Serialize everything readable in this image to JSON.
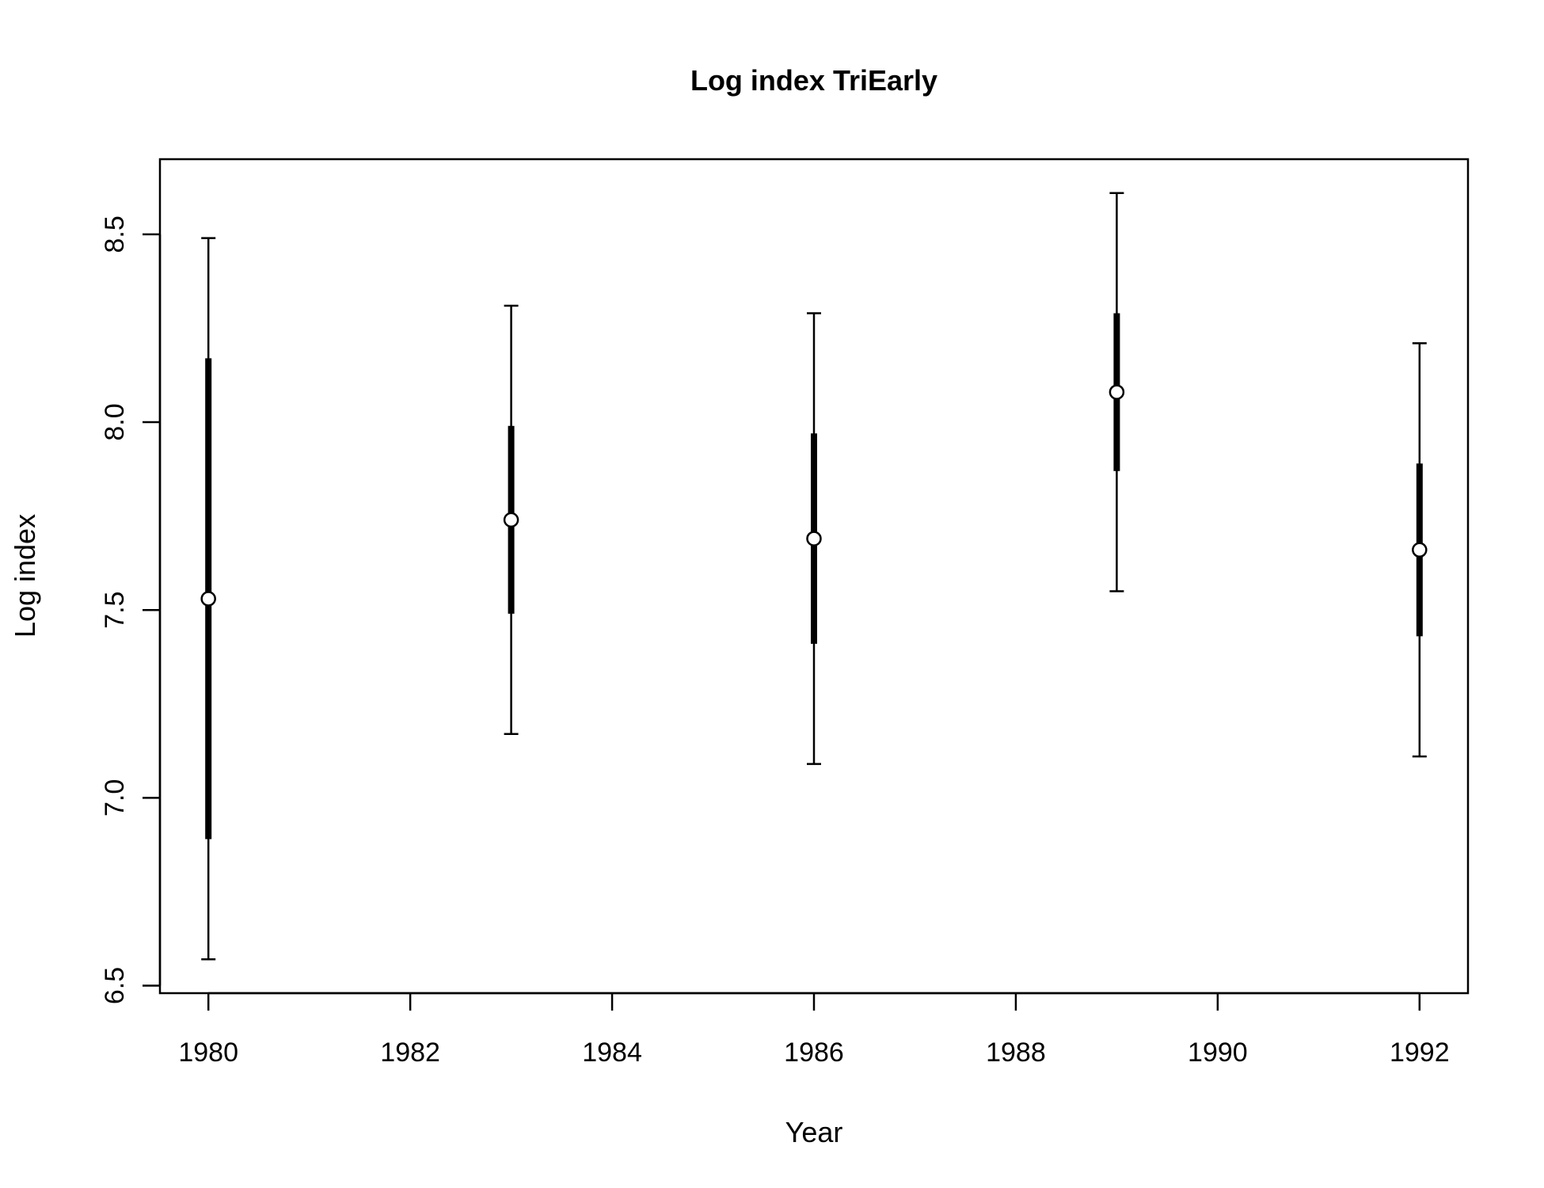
{
  "chart_data": {
    "type": "scatter",
    "title": "Log index TriEarly",
    "xlabel": "Year",
    "ylabel": "Log index",
    "xlim": [
      1979.52,
      1992.48
    ],
    "ylim": [
      6.48,
      8.7
    ],
    "x_ticks": [
      "1980",
      "1982",
      "1984",
      "1986",
      "1988",
      "1990",
      "1992"
    ],
    "y_ticks": [
      "6.5",
      "7.0",
      "7.5",
      "8.0",
      "8.5"
    ],
    "grid": false,
    "legend": "none",
    "points": [
      {
        "x": 1980,
        "y": 7.53,
        "inner_low": 6.89,
        "inner_high": 8.17,
        "outer_low": 6.57,
        "outer_high": 8.49
      },
      {
        "x": 1983,
        "y": 7.74,
        "inner_low": 7.49,
        "inner_high": 7.99,
        "outer_low": 7.17,
        "outer_high": 8.31
      },
      {
        "x": 1986,
        "y": 7.69,
        "inner_low": 7.41,
        "inner_high": 7.97,
        "outer_low": 7.09,
        "outer_high": 8.29
      },
      {
        "x": 1989,
        "y": 8.08,
        "inner_low": 7.87,
        "inner_high": 8.29,
        "outer_low": 7.55,
        "outer_high": 8.61
      },
      {
        "x": 1992,
        "y": 7.66,
        "inner_low": 7.43,
        "inner_high": 7.89,
        "outer_low": 7.11,
        "outer_high": 8.21
      }
    ],
    "colors": {
      "marks": "#000000",
      "point_fill": "#ffffff",
      "background": "#ffffff"
    }
  }
}
